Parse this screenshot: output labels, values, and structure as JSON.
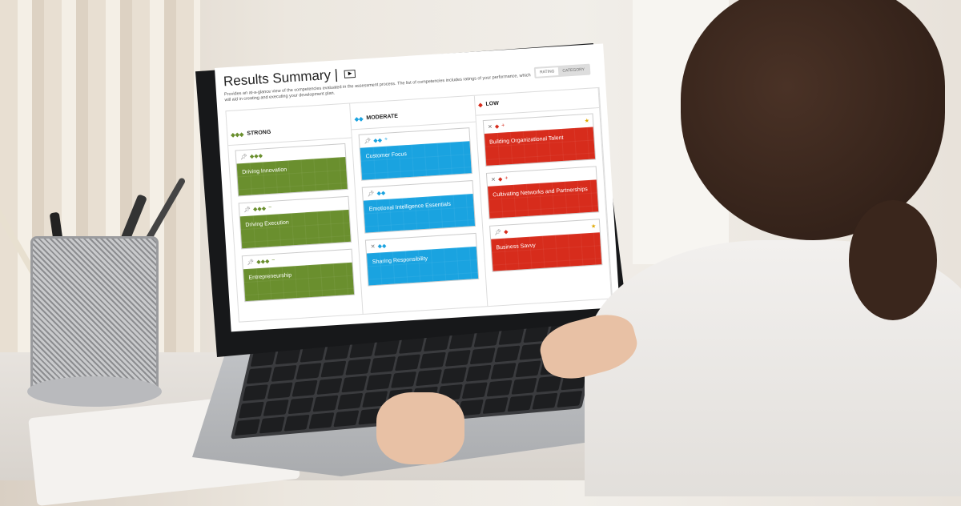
{
  "screen": {
    "title": "Results Summary |",
    "video_icon": "play-icon",
    "description": "Provides an at-a-glance view of the competencies evaluated in the assessment process. The list of competencies includes ratings of your performance, which will aid in creating and executing your development plan.",
    "view_toggle": {
      "options": [
        "RATING",
        "CATEGORY"
      ],
      "selected": "RATING"
    },
    "colors": {
      "strong": "#6a8f2e",
      "moderate": "#1aa3e0",
      "low": "#d72c1c",
      "star": "#e0a800"
    },
    "columns": [
      {
        "label": "STRONG",
        "diamonds": "◆◆◆",
        "cards": [
          {
            "name": "Driving Innovation",
            "rating": "◆◆◆",
            "modifier": "",
            "pinned": true,
            "starred": false
          },
          {
            "name": "Driving Execution",
            "rating": "◆◆◆",
            "modifier": "−",
            "pinned": true,
            "starred": false
          },
          {
            "name": "Entrepreneurship",
            "rating": "◆◆◆",
            "modifier": "−",
            "pinned": true,
            "starred": false
          }
        ]
      },
      {
        "label": "MODERATE",
        "diamonds": "◆◆",
        "cards": [
          {
            "name": "Customer Focus",
            "rating": "◆◆",
            "modifier": "+",
            "pinned": true,
            "starred": false
          },
          {
            "name": "Emotional Intelligence Essentials",
            "rating": "◆◆",
            "modifier": "",
            "pinned": true,
            "starred": false
          },
          {
            "name": "Sharing Responsibility",
            "rating": "◆◆",
            "modifier": "",
            "pinned": false,
            "starred": false
          }
        ]
      },
      {
        "label": "LOW",
        "diamonds": "◆",
        "cards": [
          {
            "name": "Building Organizational Talent",
            "rating": "◆",
            "modifier": "+",
            "pinned": false,
            "starred": true
          },
          {
            "name": "Cultivating Networks and Partnerships",
            "rating": "◆",
            "modifier": "+",
            "pinned": false,
            "starred": false
          },
          {
            "name": "Business Savvy",
            "rating": "◆",
            "modifier": "",
            "pinned": true,
            "starred": true
          }
        ]
      }
    ]
  }
}
